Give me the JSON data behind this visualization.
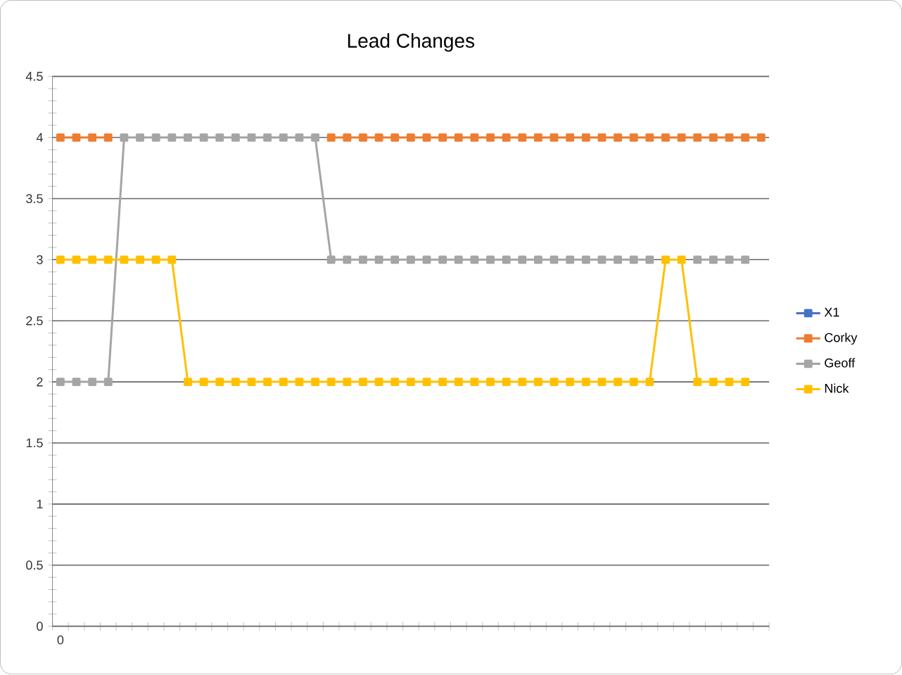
{
  "chart_data": {
    "type": "line",
    "title": "Lead Changes",
    "categories": [
      "0",
      null,
      null,
      null,
      null,
      null,
      null,
      null,
      null,
      null,
      null,
      null,
      null,
      null,
      null,
      null,
      null,
      null,
      null,
      null,
      null,
      null,
      null,
      null,
      null,
      null,
      null,
      null,
      null,
      null,
      null,
      null,
      null,
      null,
      null,
      null,
      null,
      null,
      null,
      null,
      null,
      null,
      null,
      null,
      null
    ],
    "series": [
      {
        "name": "X1",
        "color": "#4472c4",
        "values": [
          null,
          null,
          null,
          null,
          null,
          null,
          null,
          null,
          null,
          null,
          null,
          null,
          null,
          null,
          null,
          null,
          null,
          null,
          null,
          null,
          null,
          null,
          null,
          null,
          null,
          null,
          null,
          null,
          null,
          null,
          null,
          null,
          null,
          null,
          null,
          null,
          null,
          null,
          null,
          null,
          null,
          null,
          null,
          null,
          null
        ]
      },
      {
        "name": "Corky",
        "color": "#ed7d31",
        "values": [
          4,
          4,
          4,
          4,
          null,
          null,
          null,
          null,
          null,
          null,
          null,
          null,
          null,
          null,
          null,
          null,
          null,
          4,
          4,
          4,
          4,
          4,
          4,
          4,
          4,
          4,
          4,
          4,
          4,
          4,
          4,
          4,
          4,
          4,
          4,
          4,
          4,
          4,
          4,
          4,
          4,
          4,
          4,
          4,
          4
        ]
      },
      {
        "name": "Geoff",
        "color": "#a5a5a5",
        "values": [
          2,
          2,
          2,
          2,
          4,
          4,
          4,
          4,
          4,
          4,
          4,
          4,
          4,
          4,
          4,
          4,
          4,
          3,
          3,
          3,
          3,
          3,
          3,
          3,
          3,
          3,
          3,
          3,
          3,
          3,
          3,
          3,
          3,
          3,
          3,
          3,
          3,
          3,
          null,
          null,
          3,
          3,
          3,
          3,
          null
        ]
      },
      {
        "name": "Nick",
        "color": "#ffc000",
        "values": [
          3,
          3,
          3,
          3,
          3,
          3,
          3,
          3,
          2,
          2,
          2,
          2,
          2,
          2,
          2,
          2,
          2,
          2,
          2,
          2,
          2,
          2,
          2,
          2,
          2,
          2,
          2,
          2,
          2,
          2,
          2,
          2,
          2,
          2,
          2,
          2,
          2,
          2,
          3,
          3,
          2,
          2,
          2,
          2,
          null
        ]
      }
    ],
    "ylim": [
      0,
      4.5
    ],
    "yticks": [
      0,
      0.5,
      1,
      1.5,
      2,
      2.5,
      3,
      3.5,
      4,
      4.5
    ],
    "grid": "y",
    "legend": "right",
    "marker": "square",
    "line_style": "solid"
  }
}
